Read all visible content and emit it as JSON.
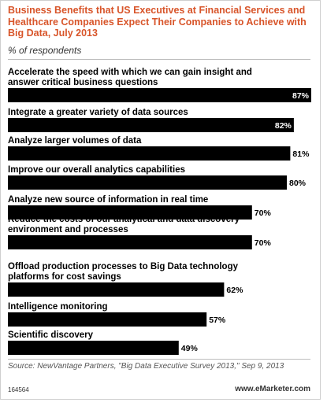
{
  "chart_data": {
    "type": "bar",
    "orientation": "horizontal",
    "title": "Business Benefits that US Executives at Financial Services and Healthcare Companies Expect Their Companies to Achieve with Big Data, July 2013",
    "subtitle": "% of respondents",
    "categories": [
      "Accelerate the speed with which we can gain insight and answer critical business questions",
      "Integrate a greater variety of data sources",
      "Analyze larger volumes of data",
      "Improve our overall analytics capabilities",
      "Analyze new source of information in real time",
      "Reduce the costs of our analytical and data discovery environment and processes",
      "Offload production processes to Big Data technology platforms for cost savings",
      "Intelligence monitoring",
      "Scientific discovery"
    ],
    "values": [
      87,
      82,
      81,
      80,
      70,
      70,
      62,
      57,
      49
    ],
    "value_labels": [
      "87%",
      "82%",
      "81%",
      "80%",
      "70%",
      "70%",
      "62%",
      "57%",
      "49%"
    ],
    "xlim": [
      0,
      87
    ],
    "grid": false,
    "legend": "none",
    "colors": {
      "bar": "#000000",
      "title": "#d8552a",
      "label": "#000000",
      "value_on_bar": "#ffffff",
      "value_outside": "#000000"
    }
  },
  "footer": {
    "source": "Source: NewVantage Partners, \"Big Data Executive Survey 2013,\" Sep 9, 2013",
    "chart_id": "164564",
    "brand": "www.eMarketer.com"
  }
}
